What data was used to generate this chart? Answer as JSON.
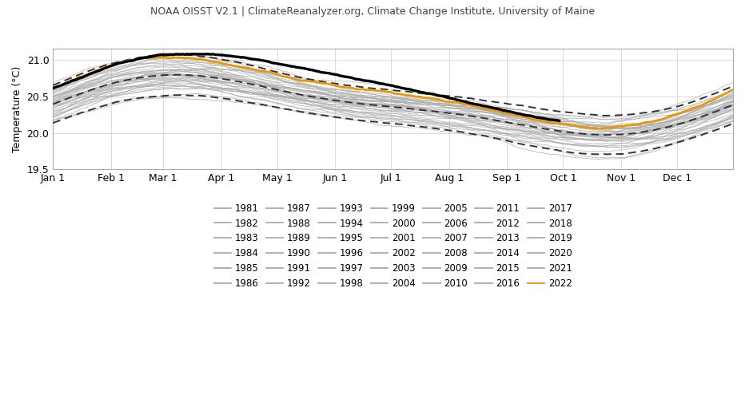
{
  "title": "NOAA OISST V2.1 | ClimateReanalyzer.org, Climate Change Institute, University of Maine",
  "ylabel": "Temperature (°C)",
  "ylim": [
    19.5,
    21.15
  ],
  "yticks": [
    19.5,
    20.0,
    20.5,
    21.0
  ],
  "xtick_labels": [
    "Jan 1",
    "Feb 1",
    "Mar 1",
    "Apr 1",
    "May 1",
    "Jun 1",
    "Jul 1",
    "Aug 1",
    "Sep 1",
    "Oct 1",
    "Nov 1",
    "Dec 1"
  ],
  "month_starts": [
    1,
    32,
    60,
    91,
    121,
    152,
    182,
    213,
    244,
    274,
    305,
    335
  ],
  "gray_color": "#aaaaaa",
  "orange_color": "#e8960c",
  "black_color": "#000000",
  "dashed_color": "#333333",
  "background_color": "#ffffff",
  "gray_years": [
    1981,
    1982,
    1983,
    1984,
    1985,
    1986,
    1987,
    1988,
    1989,
    1990,
    1991,
    1992,
    1993,
    1994,
    1995,
    1996,
    1997,
    1998,
    1999,
    2000,
    2001,
    2002,
    2003,
    2004,
    2005,
    2006,
    2007,
    2008,
    2009,
    2010,
    2011,
    2012,
    2013,
    2014,
    2015,
    2016,
    2017,
    2018,
    2019,
    2020,
    2021
  ],
  "legend_years": [
    1981,
    1982,
    1983,
    1984,
    1985,
    1986,
    1987,
    1988,
    1989,
    1990,
    1991,
    1992,
    1993,
    1994,
    1995,
    1996,
    1997,
    1998,
    1999,
    2000,
    2001,
    2002,
    2003,
    2004,
    2005,
    2006,
    2007,
    2008,
    2009,
    2010,
    2011,
    2012,
    2013,
    2014,
    2015,
    2016,
    2017,
    2018,
    2019,
    2020,
    2021,
    2022
  ],
  "title_fontsize": 9,
  "label_fontsize": 9,
  "tick_fontsize": 9,
  "legend_fontsize": 8.5
}
